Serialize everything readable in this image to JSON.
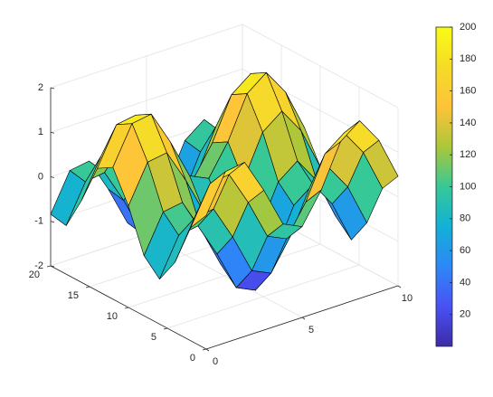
{
  "chart_data": {
    "type": "surface",
    "x": [
      0,
      1,
      2,
      3,
      4,
      5,
      6,
      7,
      8,
      9,
      10
    ],
    "y": [
      0,
      2,
      4,
      6,
      8,
      10,
      12,
      14,
      16,
      18,
      20
    ],
    "z": [
      [
        1,
        1.84,
        1.91,
        1.14,
        0.24,
        0.04,
        0.72,
        1.66,
        1.99,
        1.41,
        0.46
      ],
      [
        0.54,
        1.38,
        1.45,
        0.68,
        -0.22,
        -0.42,
        0.26,
        1.2,
        1.53,
        0.95,
        0
      ],
      [
        -0.42,
        0.42,
        0.49,
        -0.28,
        -1.18,
        -1.38,
        -0.7,
        0.24,
        0.57,
        -0.01,
        -0.96
      ],
      [
        -0.99,
        -0.15,
        -0.08,
        -0.85,
        -1.75,
        -1.95,
        -1.27,
        -0.33,
        0,
        -0.58,
        -1.53
      ],
      [
        -0.65,
        0.19,
        0.26,
        -0.51,
        -1.41,
        -1.61,
        -0.93,
        0.01,
        0.34,
        -0.24,
        -1.19
      ],
      [
        0.28,
        1.12,
        1.19,
        0.42,
        -0.48,
        -0.68,
        0,
        0.94,
        1.27,
        0.69,
        -0.26
      ],
      [
        0.96,
        1.8,
        1.87,
        1.1,
        0.2,
        0,
        0.68,
        1.62,
        1.95,
        1.37,
        0.42
      ],
      [
        0.75,
        1.59,
        1.66,
        0.89,
        -0.01,
        -0.21,
        0.47,
        1.41,
        1.74,
        1.16,
        0.21
      ],
      [
        -0.15,
        0.69,
        0.76,
        -0.01,
        -0.91,
        -1.11,
        -0.43,
        0.51,
        0.84,
        0.26,
        -0.69
      ],
      [
        -0.91,
        -0.07,
        0,
        -0.77,
        -1.67,
        -1.87,
        -1.19,
        -0.25,
        0.08,
        -0.5,
        -1.45
      ],
      [
        -0.84,
        0,
        0.07,
        -0.7,
        -1.6,
        -1.8,
        -1.12,
        -0.18,
        0.15,
        -0.43,
        -1.38
      ]
    ],
    "c": [
      [
        150,
        192,
        195.5,
        157,
        112,
        102,
        136,
        183,
        199.5,
        170.5,
        123
      ],
      [
        127,
        169,
        172.5,
        134,
        89,
        79,
        113,
        160,
        176.5,
        147.5,
        100
      ],
      [
        79,
        121,
        124.5,
        86,
        41,
        31,
        65,
        112,
        128.5,
        99.5,
        52
      ],
      [
        50.5,
        92.5,
        96,
        57.5,
        12.5,
        2.5,
        36.5,
        83.5,
        100,
        71,
        23.5
      ],
      [
        67.5,
        109.5,
        113,
        74.5,
        29.5,
        19.5,
        53.5,
        100.5,
        117,
        88,
        40.5
      ],
      [
        114,
        156,
        159.5,
        121,
        76,
        66,
        100,
        147,
        163.5,
        134.5,
        87
      ],
      [
        148,
        190,
        193.5,
        155,
        110,
        100,
        134,
        181,
        197.5,
        168.5,
        121
      ],
      [
        137.5,
        179.5,
        183,
        144.5,
        99.5,
        89.5,
        123.5,
        170.5,
        187,
        158,
        110.5
      ],
      [
        92.5,
        134.5,
        138,
        99.5,
        54.5,
        44.5,
        78.5,
        125.5,
        142,
        113,
        65.5
      ],
      [
        54.5,
        96.5,
        100,
        61.5,
        16.5,
        6.5,
        40.5,
        87.5,
        104,
        75,
        27.5
      ],
      [
        58,
        100,
        103.5,
        65,
        20,
        10,
        44,
        91,
        107.5,
        78.5,
        31
      ]
    ],
    "xlim": [
      0,
      10
    ],
    "ylim": [
      0,
      20
    ],
    "zlim": [
      -2,
      2
    ],
    "xticks": [
      0,
      5,
      10
    ],
    "yticks": [
      0,
      5,
      10,
      15,
      20
    ],
    "zticks": [
      -2,
      -1,
      0,
      1,
      2
    ],
    "clim": [
      0,
      200
    ],
    "cticks": [
      20,
      40,
      60,
      80,
      100,
      120,
      140,
      160,
      180,
      200
    ],
    "colormap": [
      "#3e2aa8",
      "#4852f4",
      "#2e87f7",
      "#12b1d6",
      "#37c897",
      "#abc739",
      "#fec338",
      "#f5dc28",
      "#f9fb15"
    ],
    "edge_color": "#000000",
    "grid": true
  }
}
